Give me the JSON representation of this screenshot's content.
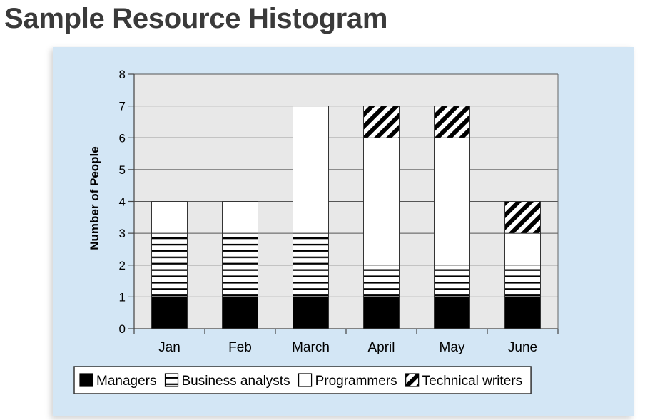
{
  "page_title": "Sample Resource Histogram",
  "colors": {
    "panel_background": "#d3e6f5",
    "plot_background": "#e8e8e8",
    "managers": "#000000",
    "programmers": "#ffffff",
    "bar_outline": "#333333"
  },
  "chart_data": {
    "type": "bar",
    "stacked": true,
    "title": "",
    "xlabel": "",
    "ylabel": "Number of People",
    "ylim": [
      0,
      8
    ],
    "yticks": [
      0,
      1,
      2,
      3,
      4,
      5,
      6,
      7,
      8
    ],
    "grid": true,
    "legend_position": "bottom",
    "categories": [
      "Jan",
      "Feb",
      "March",
      "April",
      "May",
      "June"
    ],
    "series": [
      {
        "name": "Managers",
        "pattern": "solid-black",
        "values": [
          1,
          1,
          1,
          1,
          1,
          1
        ]
      },
      {
        "name": "Business analysts",
        "pattern": "horizontal-lines",
        "values": [
          2,
          2,
          2,
          1,
          1,
          1
        ]
      },
      {
        "name": "Programmers",
        "pattern": "solid-white",
        "values": [
          1,
          1,
          4,
          4,
          4,
          1
        ]
      },
      {
        "name": "Technical writers",
        "pattern": "diagonal-stripes",
        "values": [
          0,
          0,
          0,
          1,
          1,
          1
        ]
      }
    ]
  }
}
